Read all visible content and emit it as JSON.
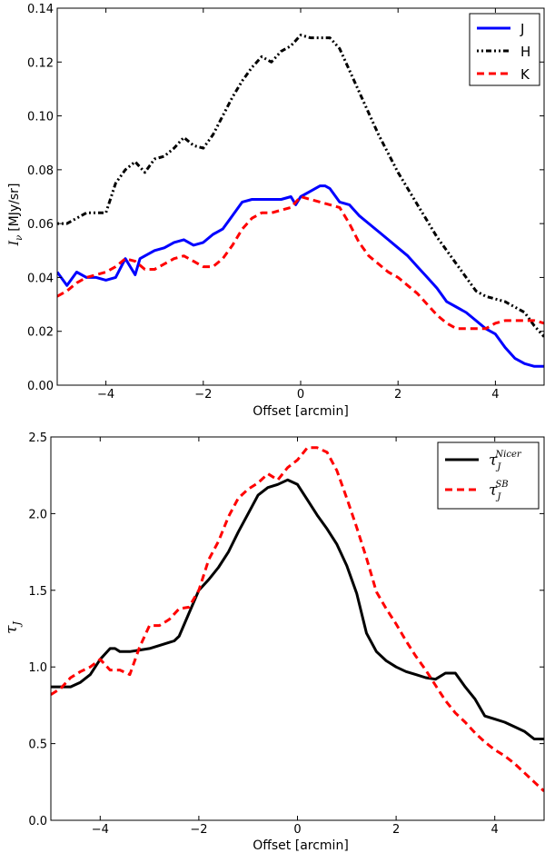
{
  "chart_data": [
    {
      "type": "line",
      "xlabel": "Offset [arcmin]",
      "ylabel": "I_ν [MJy/sr]",
      "ylabel_symbol": "I",
      "ylabel_sub": "ν",
      "ylabel_unit": "[MJy/sr]",
      "xlim": [
        -5,
        5
      ],
      "ylim": [
        0,
        0.14
      ],
      "xticks": [
        -4,
        -2,
        0,
        2,
        4
      ],
      "xtick_labels": [
        "−4",
        "−2",
        "0",
        "2",
        "4"
      ],
      "yticks": [
        0,
        0.02,
        0.04,
        0.06,
        0.08,
        0.1,
        0.12,
        0.14
      ],
      "ytick_labels": [
        "0.00",
        "0.02",
        "0.04",
        "0.06",
        "0.08",
        "0.10",
        "0.12",
        "0.14"
      ],
      "grid": false,
      "legend_position": "top-right",
      "series": [
        {
          "name": "J",
          "color": "#0000ff",
          "style": "solid",
          "x": [
            -5.0,
            -4.8,
            -4.6,
            -4.4,
            -4.2,
            -4.0,
            -3.8,
            -3.6,
            -3.4,
            -3.3,
            -3.2,
            -3.0,
            -2.8,
            -2.6,
            -2.4,
            -2.2,
            -2.0,
            -1.8,
            -1.6,
            -1.4,
            -1.2,
            -1.0,
            -0.8,
            -0.6,
            -0.4,
            -0.2,
            -0.1,
            0.0,
            0.2,
            0.4,
            0.5,
            0.6,
            0.8,
            1.0,
            1.2,
            1.4,
            1.6,
            1.8,
            2.0,
            2.2,
            2.4,
            2.6,
            2.8,
            3.0,
            3.2,
            3.4,
            3.6,
            3.8,
            4.0,
            4.2,
            4.4,
            4.6,
            4.8,
            5.0
          ],
          "y": [
            0.042,
            0.037,
            0.042,
            0.04,
            0.04,
            0.039,
            0.04,
            0.047,
            0.041,
            0.047,
            0.048,
            0.05,
            0.051,
            0.053,
            0.054,
            0.052,
            0.053,
            0.056,
            0.058,
            0.063,
            0.068,
            0.069,
            0.069,
            0.069,
            0.069,
            0.07,
            0.067,
            0.07,
            0.072,
            0.074,
            0.074,
            0.073,
            0.068,
            0.067,
            0.063,
            0.06,
            0.057,
            0.054,
            0.051,
            0.048,
            0.044,
            0.04,
            0.036,
            0.031,
            0.029,
            0.027,
            0.024,
            0.021,
            0.019,
            0.014,
            0.01,
            0.008,
            0.007,
            0.007
          ]
        },
        {
          "name": "H",
          "color": "#000000",
          "style": "dashdot",
          "x": [
            -5.0,
            -4.8,
            -4.6,
            -4.4,
            -4.2,
            -4.0,
            -3.8,
            -3.6,
            -3.4,
            -3.3,
            -3.2,
            -3.0,
            -2.8,
            -2.6,
            -2.4,
            -2.2,
            -2.0,
            -1.8,
            -1.6,
            -1.4,
            -1.2,
            -1.0,
            -0.8,
            -0.6,
            -0.4,
            -0.2,
            0.0,
            0.2,
            0.4,
            0.6,
            0.8,
            1.0,
            1.2,
            1.4,
            1.6,
            1.8,
            2.0,
            2.2,
            2.4,
            2.6,
            2.8,
            3.0,
            3.2,
            3.4,
            3.6,
            3.8,
            4.0,
            4.2,
            4.4,
            4.6,
            4.8,
            5.0
          ],
          "y": [
            0.06,
            0.06,
            0.062,
            0.064,
            0.064,
            0.064,
            0.075,
            0.08,
            0.083,
            0.081,
            0.079,
            0.084,
            0.085,
            0.088,
            0.092,
            0.089,
            0.088,
            0.093,
            0.1,
            0.107,
            0.113,
            0.118,
            0.122,
            0.12,
            0.124,
            0.126,
            0.13,
            0.129,
            0.129,
            0.129,
            0.125,
            0.117,
            0.109,
            0.101,
            0.093,
            0.086,
            0.079,
            0.073,
            0.067,
            0.061,
            0.055,
            0.05,
            0.045,
            0.04,
            0.035,
            0.033,
            0.032,
            0.031,
            0.029,
            0.027,
            0.022,
            0.018
          ]
        },
        {
          "name": "K",
          "color": "#ff0000",
          "style": "dashed",
          "x": [
            -5.0,
            -4.8,
            -4.6,
            -4.4,
            -4.2,
            -4.0,
            -3.8,
            -3.6,
            -3.4,
            -3.2,
            -3.0,
            -2.8,
            -2.6,
            -2.4,
            -2.2,
            -2.0,
            -1.8,
            -1.6,
            -1.4,
            -1.2,
            -1.0,
            -0.8,
            -0.6,
            -0.4,
            -0.2,
            0.0,
            0.2,
            0.4,
            0.6,
            0.8,
            1.0,
            1.2,
            1.4,
            1.6,
            1.8,
            2.0,
            2.2,
            2.4,
            2.6,
            2.8,
            3.0,
            3.2,
            3.4,
            3.6,
            3.8,
            4.0,
            4.2,
            4.4,
            4.6,
            4.8,
            5.0
          ],
          "y": [
            0.033,
            0.035,
            0.038,
            0.04,
            0.041,
            0.042,
            0.044,
            0.047,
            0.046,
            0.043,
            0.043,
            0.045,
            0.047,
            0.048,
            0.046,
            0.044,
            0.044,
            0.047,
            0.052,
            0.058,
            0.062,
            0.064,
            0.064,
            0.065,
            0.066,
            0.07,
            0.069,
            0.068,
            0.067,
            0.066,
            0.06,
            0.053,
            0.048,
            0.045,
            0.042,
            0.04,
            0.037,
            0.034,
            0.03,
            0.026,
            0.023,
            0.021,
            0.021,
            0.021,
            0.021,
            0.023,
            0.024,
            0.024,
            0.024,
            0.024,
            0.023
          ]
        }
      ]
    },
    {
      "type": "line",
      "xlabel": "Offset [arcmin]",
      "ylabel": "τ_J",
      "ylabel_symbol": "τ",
      "ylabel_sub": "J",
      "xlim": [
        -5,
        5
      ],
      "ylim": [
        0,
        2.5
      ],
      "xticks": [
        -4,
        -2,
        0,
        2,
        4
      ],
      "xtick_labels": [
        "−4",
        "−2",
        "0",
        "2",
        "4"
      ],
      "yticks": [
        0,
        0.5,
        1.0,
        1.5,
        2.0,
        2.5
      ],
      "ytick_labels": [
        "0.0",
        "0.5",
        "1.0",
        "1.5",
        "2.0",
        "2.5"
      ],
      "grid": false,
      "legend_position": "top-right",
      "series": [
        {
          "name": "τ_J^Nicer",
          "label_symbol": "τ",
          "label_sub": "J",
          "label_sup": "Nicer",
          "color": "#000000",
          "style": "solid",
          "x": [
            -5.0,
            -4.8,
            -4.6,
            -4.4,
            -4.2,
            -4.0,
            -3.8,
            -3.7,
            -3.6,
            -3.4,
            -3.2,
            -3.0,
            -2.8,
            -2.6,
            -2.5,
            -2.4,
            -2.2,
            -2.0,
            -1.8,
            -1.6,
            -1.4,
            -1.2,
            -1.0,
            -0.8,
            -0.6,
            -0.4,
            -0.2,
            0.0,
            0.2,
            0.4,
            0.6,
            0.8,
            1.0,
            1.2,
            1.4,
            1.6,
            1.8,
            2.0,
            2.2,
            2.4,
            2.6,
            2.8,
            3.0,
            3.2,
            3.4,
            3.6,
            3.8,
            4.0,
            4.2,
            4.4,
            4.6,
            4.8,
            5.0
          ],
          "y": [
            0.87,
            0.87,
            0.87,
            0.9,
            0.95,
            1.05,
            1.12,
            1.12,
            1.1,
            1.1,
            1.11,
            1.12,
            1.14,
            1.16,
            1.17,
            1.2,
            1.35,
            1.5,
            1.57,
            1.65,
            1.75,
            1.88,
            2.0,
            2.12,
            2.17,
            2.19,
            2.22,
            2.19,
            2.09,
            1.99,
            1.9,
            1.8,
            1.66,
            1.48,
            1.22,
            1.1,
            1.04,
            1.0,
            0.97,
            0.95,
            0.93,
            0.92,
            0.96,
            0.96,
            0.87,
            0.79,
            0.68,
            0.66,
            0.64,
            0.61,
            0.58,
            0.53,
            0.53
          ]
        },
        {
          "name": "τ_J^SB",
          "label_symbol": "τ",
          "label_sub": "J",
          "label_sup": "SB",
          "color": "#ff0000",
          "style": "dashed",
          "x": [
            -5.0,
            -4.8,
            -4.6,
            -4.4,
            -4.2,
            -4.0,
            -3.8,
            -3.6,
            -3.4,
            -3.2,
            -3.0,
            -2.8,
            -2.6,
            -2.4,
            -2.2,
            -2.0,
            -1.8,
            -1.6,
            -1.4,
            -1.2,
            -1.0,
            -0.8,
            -0.6,
            -0.4,
            -0.2,
            0.0,
            0.2,
            0.4,
            0.6,
            0.8,
            1.0,
            1.2,
            1.4,
            1.6,
            1.8,
            2.0,
            2.2,
            2.4,
            2.6,
            2.8,
            3.0,
            3.2,
            3.4,
            3.6,
            3.8,
            4.0,
            4.2,
            4.4,
            4.6,
            4.8,
            5.0
          ],
          "y": [
            0.82,
            0.86,
            0.93,
            0.97,
            1.0,
            1.05,
            0.98,
            0.98,
            0.95,
            1.13,
            1.27,
            1.27,
            1.31,
            1.38,
            1.39,
            1.5,
            1.7,
            1.82,
            1.98,
            2.1,
            2.16,
            2.2,
            2.26,
            2.22,
            2.3,
            2.35,
            2.43,
            2.43,
            2.4,
            2.28,
            2.1,
            1.91,
            1.71,
            1.49,
            1.38,
            1.28,
            1.17,
            1.07,
            0.98,
            0.88,
            0.78,
            0.7,
            0.64,
            0.57,
            0.51,
            0.46,
            0.42,
            0.37,
            0.31,
            0.25,
            0.19
          ]
        }
      ]
    }
  ]
}
